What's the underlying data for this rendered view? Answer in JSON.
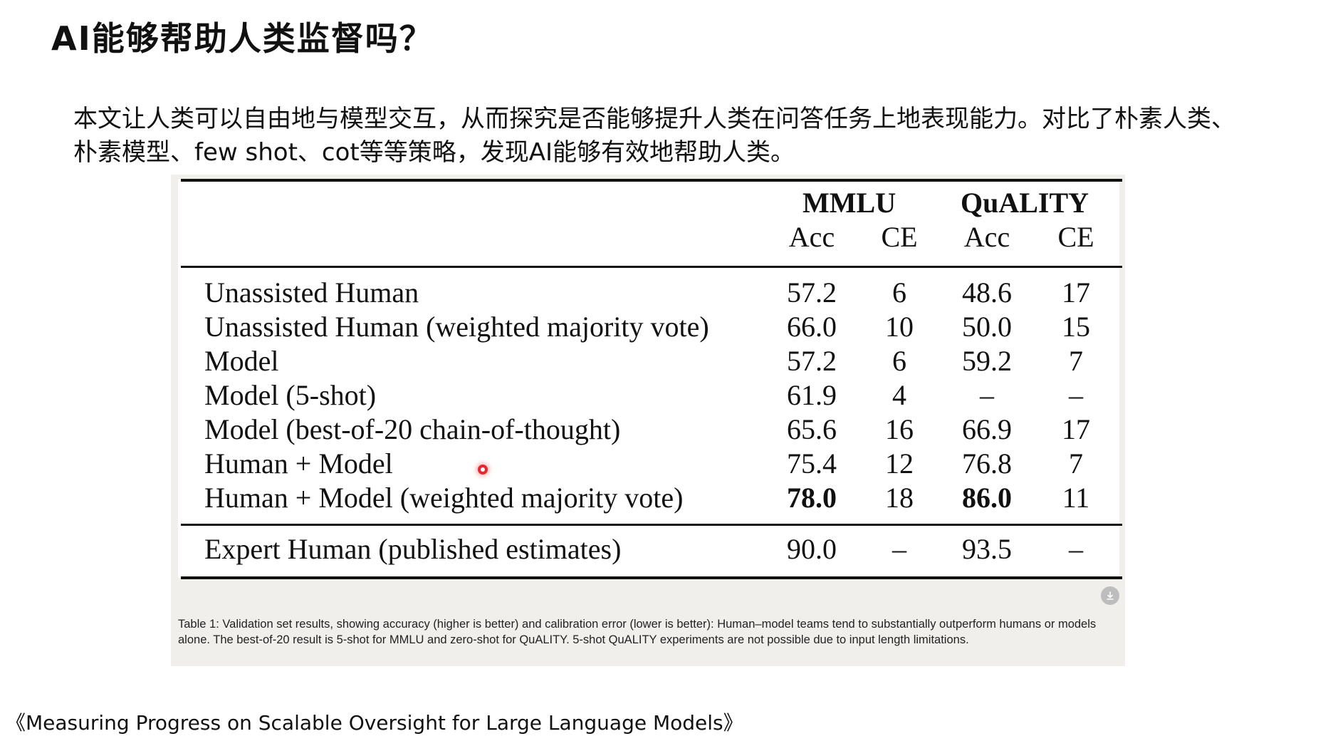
{
  "slide": {
    "title": "AI能够帮助人类监督吗？",
    "intro": "本文让人类可以自由地与模型交互，从而探究是否能够提升人类在问答任务上地表现能力。对比了朴素人类、朴素模型、few shot、cot等等策略，发现AI能够有效地帮助人类。",
    "citation": "《Measuring Progress on Scalable Oversight for Large Language Models》"
  },
  "table": {
    "groups": [
      "MMLU",
      "QuALITY"
    ],
    "columns": [
      "Acc",
      "CE",
      "Acc",
      "CE"
    ],
    "rows": [
      {
        "label": "Unassisted Human",
        "values": [
          "57.2",
          "6",
          "48.6",
          "17"
        ]
      },
      {
        "label": "Unassisted Human (weighted majority vote)",
        "values": [
          "66.0",
          "10",
          "50.0",
          "15"
        ]
      },
      {
        "label": "Model",
        "values": [
          "57.2",
          "6",
          "59.2",
          "7"
        ]
      },
      {
        "label": "Model (5-shot)",
        "values": [
          "61.9",
          "4",
          "–",
          "–"
        ]
      },
      {
        "label": "Model (best-of-20 chain-of-thought)",
        "values": [
          "65.6",
          "16",
          "66.9",
          "17"
        ]
      },
      {
        "label": "Human + Model",
        "values": [
          "75.4",
          "12",
          "76.8",
          "7"
        ]
      },
      {
        "label": "Human + Model (weighted majority vote)",
        "values": [
          "78.0",
          "18",
          "86.0",
          "11"
        ]
      }
    ],
    "expert_row": {
      "label": "Expert Human (published estimates)",
      "values": [
        "90.0",
        "–",
        "93.5",
        "–"
      ]
    },
    "caption": "Table 1: Validation set results, showing accuracy (higher is better) and calibration error (lower is better): Human–model teams tend to substantially outperform humans or models alone. The best-of-20 result is 5-shot for MMLU and zero-shot for QuALITY. 5-shot QuALITY experiments are not possible due to input length limitations."
  },
  "icons": {
    "download": "download-icon",
    "cursor": "cursor-indicator"
  },
  "colors": {
    "figure_background": "#f1efeb",
    "cursor": "#e8262e"
  }
}
